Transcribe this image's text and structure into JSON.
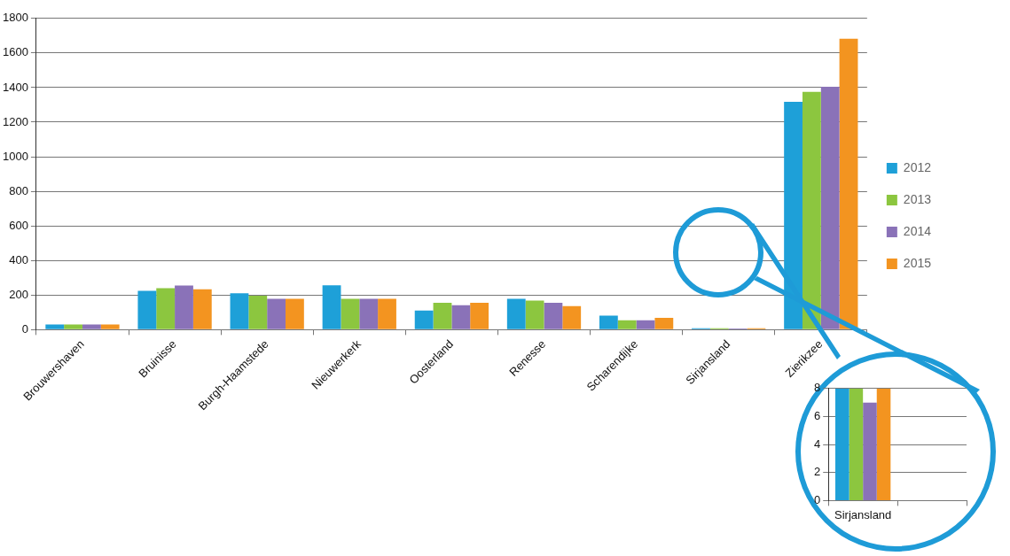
{
  "chart_data": [
    {
      "type": "bar",
      "categories": [
        "Brouwershaven",
        "Bruinisse",
        "Burgh-Haamstede",
        "Nieuwerkerk",
        "Oosterland",
        "Renesse",
        "Scharendijke",
        "Sirjansland",
        "Zierikzee"
      ],
      "series": [
        {
          "name": "2012",
          "color": "#1ea0d8",
          "values": [
            30,
            225,
            210,
            257,
            111,
            178,
            81,
            8,
            1318
          ]
        },
        {
          "name": "2013",
          "color": "#8cc63f",
          "values": [
            30,
            240,
            196,
            178,
            156,
            168,
            55,
            8,
            1375
          ]
        },
        {
          "name": "2014",
          "color": "#8a72b8",
          "values": [
            30,
            255,
            178,
            178,
            142,
            156,
            55,
            7,
            1405
          ]
        },
        {
          "name": "2015",
          "color": "#f39420",
          "values": [
            30,
            233,
            178,
            178,
            156,
            136,
            69,
            8,
            1683
          ]
        }
      ],
      "ylim": [
        0,
        1800
      ],
      "yticks": [
        0,
        200,
        400,
        600,
        800,
        1000,
        1200,
        1400,
        1600,
        1800
      ],
      "grid": "y",
      "legend": "right"
    },
    {
      "type": "bar",
      "categories": [
        "Sirjansland",
        null
      ],
      "series": [
        {
          "color": "#1ea0d8",
          "values": [
            8,
            null
          ]
        },
        {
          "color": "#8cc63f",
          "values": [
            8,
            null
          ]
        },
        {
          "color": "#8a72b8",
          "values": [
            7,
            null
          ]
        },
        {
          "color": "#f39420",
          "values": [
            8,
            null
          ]
        }
      ],
      "ylim": [
        0,
        8
      ],
      "yticks": [
        0,
        2,
        4,
        6,
        8
      ],
      "grid": "y"
    }
  ]
}
